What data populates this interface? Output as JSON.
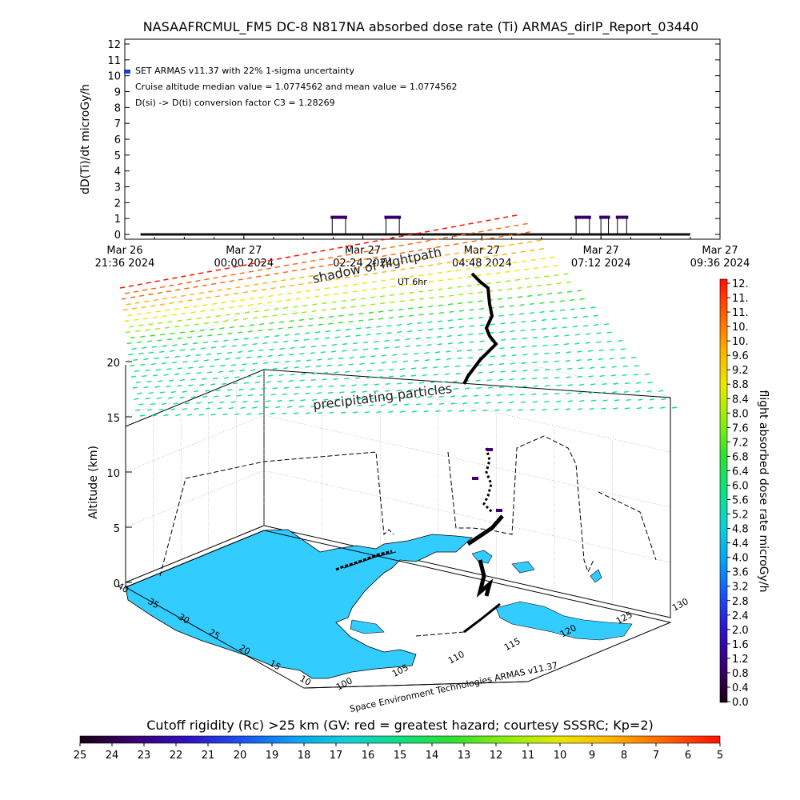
{
  "header": {
    "title": "NASAAFRCMUL_FM5 DC-8   N817NA absorbed dose rate (Ti) ARMAS_dirIP_Report_03440"
  },
  "chart_data": [
    {
      "type": "scatter",
      "ylabel": "dD(Ti)/dt microGy/h",
      "ylim": [
        0,
        12
      ],
      "yticks": [
        "0",
        "1",
        "2",
        "3",
        "4",
        "5",
        "6",
        "7",
        "8",
        "9",
        "10",
        "11",
        "12"
      ],
      "xticks": [
        {
          "date": "Mar 26",
          "time": "21:36",
          "year": "2024"
        },
        {
          "date": "Mar 27",
          "time": "00:00",
          "year": "2024"
        },
        {
          "date": "Mar 27",
          "time": "02:24",
          "year": "2024"
        },
        {
          "date": "Mar 27",
          "time": "04:48",
          "year": "2024"
        },
        {
          "date": "Mar 27",
          "time": "07:12",
          "year": "2024"
        },
        {
          "date": "Mar 27",
          "time": "09:36",
          "year": "2024"
        }
      ],
      "legend": [
        "SET ARMAS v11.37 with 22% 1-sigma uncertainty",
        "Cruise altitude median value = 1.0774562 and mean value = 1.0774562",
        "D(si) -> D(ti) conversion factor C3 = 1.28269"
      ],
      "legend_marker_color": "#1a3fd0",
      "baseline_segments": [
        [
          "21:55",
          "09:00"
        ]
      ],
      "spike_segments": [
        [
          "01:45",
          "02:05"
        ],
        [
          "02:50",
          "03:10"
        ],
        [
          "06:40",
          "07:00"
        ],
        [
          "07:10",
          "07:23"
        ],
        [
          "07:30",
          "07:45"
        ]
      ],
      "baseline_value": 0,
      "spike_value": 1.08
    },
    {
      "type": "scatter",
      "zlabel": "Altitude (km)",
      "zticks": [
        "0",
        "5",
        "10",
        "15",
        "20"
      ],
      "lat_ticks": [
        "40",
        "35",
        "30",
        "25",
        "20",
        "15",
        "10"
      ],
      "lon_ticks": [
        "100",
        "105",
        "110",
        "115",
        "120",
        "125",
        "130"
      ],
      "annotations": {
        "shadow": "shadow of flightpath",
        "ut": "UT 6hr",
        "precip": "precipitating particles"
      },
      "credit": "Space Environment Technologies ARMAS v11.37",
      "colorbar": {
        "label": "flight absorbed dose rate microGy/h",
        "ticks": [
          "12.",
          "11.",
          "11.",
          "10.",
          "10.",
          "9.6",
          "9.2",
          "8.8",
          "8.4",
          "8.0",
          "7.6",
          "7.2",
          "6.8",
          "6.4",
          "6.0",
          "5.6",
          "5.2",
          "4.8",
          "4.4",
          "4.0",
          "3.6",
          "3.2",
          "2.8",
          "2.4",
          "2.0",
          "1.6",
          "1.2",
          "0.8",
          "0.4",
          "0.0"
        ]
      },
      "land_color": "#33ccff",
      "flight_color": "#000000"
    },
    {
      "type": "heatmap",
      "title": "Cutoff rigidity (Rc) >25 km (GV: red = greatest hazard; courtesy SSSRC; Kp=2)",
      "ticks": [
        "25",
        "24",
        "23",
        "22",
        "21",
        "20",
        "19",
        "18",
        "17",
        "16",
        "15",
        "14",
        "13",
        "12",
        "11",
        "10",
        "9",
        "8",
        "7",
        "6",
        "5"
      ]
    }
  ],
  "palette": [
    "#1a0010",
    "#3a0070",
    "#3010c0",
    "#1c50f0",
    "#0aa0f0",
    "#10d0d8",
    "#10e080",
    "#30e030",
    "#90ee10",
    "#e8e800",
    "#ffb000",
    "#ff6000",
    "#ff1000"
  ]
}
